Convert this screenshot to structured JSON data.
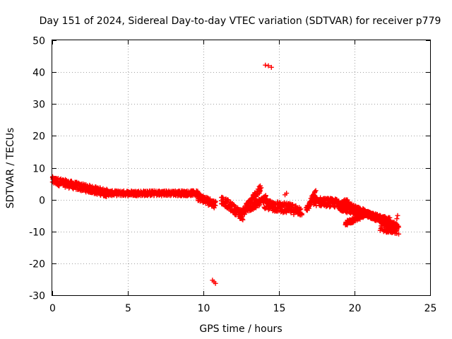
{
  "chart_data": {
    "type": "scatter",
    "title": "Day 151 of 2024, Sidereal Day-to-day VTEC variation (SDTVAR) for receiver p779",
    "xlabel": "GPS time / hours",
    "ylabel": "SDTVAR / TECUs",
    "xlim": [
      0,
      25
    ],
    "ylim": [
      -30,
      50
    ],
    "xticks": [
      0,
      5,
      10,
      15,
      20,
      25
    ],
    "yticks": [
      -30,
      -20,
      -10,
      0,
      10,
      20,
      30,
      40,
      50
    ],
    "grid": true,
    "marker": "plus",
    "series_color": "#ff0000",
    "segments": [
      {
        "name": "early-decline",
        "x0": 0.0,
        "x1": 3.7,
        "y0": 6.0,
        "y1": 2.0,
        "spread": 1.2
      },
      {
        "name": "morning-flat",
        "x0": 3.7,
        "x1": 9.7,
        "y0": 2.0,
        "y1": 2.0,
        "spread": 0.8
      },
      {
        "name": "late-morning-dip",
        "x0": 9.6,
        "x1": 10.8,
        "y0": 1.0,
        "y1": -1.5,
        "spread": 1.2
      },
      {
        "name": "afternoon-descent",
        "x0": 11.2,
        "x1": 12.6,
        "y0": 0.0,
        "y1": -5.0,
        "spread": 1.4
      },
      {
        "name": "afternoon-ascent-a",
        "x0": 12.4,
        "x1": 13.8,
        "y0": -5.0,
        "y1": 3.5,
        "spread": 1.2
      },
      {
        "name": "afternoon-ascent-b",
        "x0": 12.6,
        "x1": 14.2,
        "y0": -4.0,
        "y1": 0.5,
        "spread": 1.0
      },
      {
        "name": "post-noon",
        "x0": 14.0,
        "x1": 16.5,
        "y0": -1.5,
        "y1": -3.5,
        "spread": 1.6
      },
      {
        "name": "evening-rise",
        "x0": 16.8,
        "x1": 17.4,
        "y0": -3.5,
        "y1": 2.0,
        "spread": 1.0
      },
      {
        "name": "evening-hump",
        "x0": 17.3,
        "x1": 19.6,
        "y0": -0.5,
        "y1": -1.5,
        "spread": 1.4
      },
      {
        "name": "night-branch-a",
        "x0": 19.4,
        "x1": 22.8,
        "y0": -1.5,
        "y1": -8.5,
        "spread": 1.0
      },
      {
        "name": "night-branch-b",
        "x0": 19.0,
        "x1": 22.3,
        "y0": -2.5,
        "y1": -6.5,
        "spread": 1.0
      },
      {
        "name": "night-branch-c",
        "x0": 19.4,
        "x1": 20.6,
        "y0": -7.5,
        "y1": -5.0,
        "spread": 0.7
      },
      {
        "name": "end-cluster",
        "x0": 21.7,
        "x1": 22.9,
        "y0": -8.0,
        "y1": -9.5,
        "spread": 1.8
      }
    ],
    "outliers": [
      {
        "x": 14.1,
        "y": 42.2
      },
      {
        "x": 14.3,
        "y": 42.0
      },
      {
        "x": 14.5,
        "y": 41.5
      },
      {
        "x": 10.6,
        "y": -25.3
      },
      {
        "x": 10.7,
        "y": -25.8
      },
      {
        "x": 10.8,
        "y": -26.3
      },
      {
        "x": 15.4,
        "y": 1.5
      },
      {
        "x": 15.5,
        "y": 2.0
      },
      {
        "x": 22.85,
        "y": -5.0
      },
      {
        "x": 22.8,
        "y": -6.0
      }
    ]
  }
}
